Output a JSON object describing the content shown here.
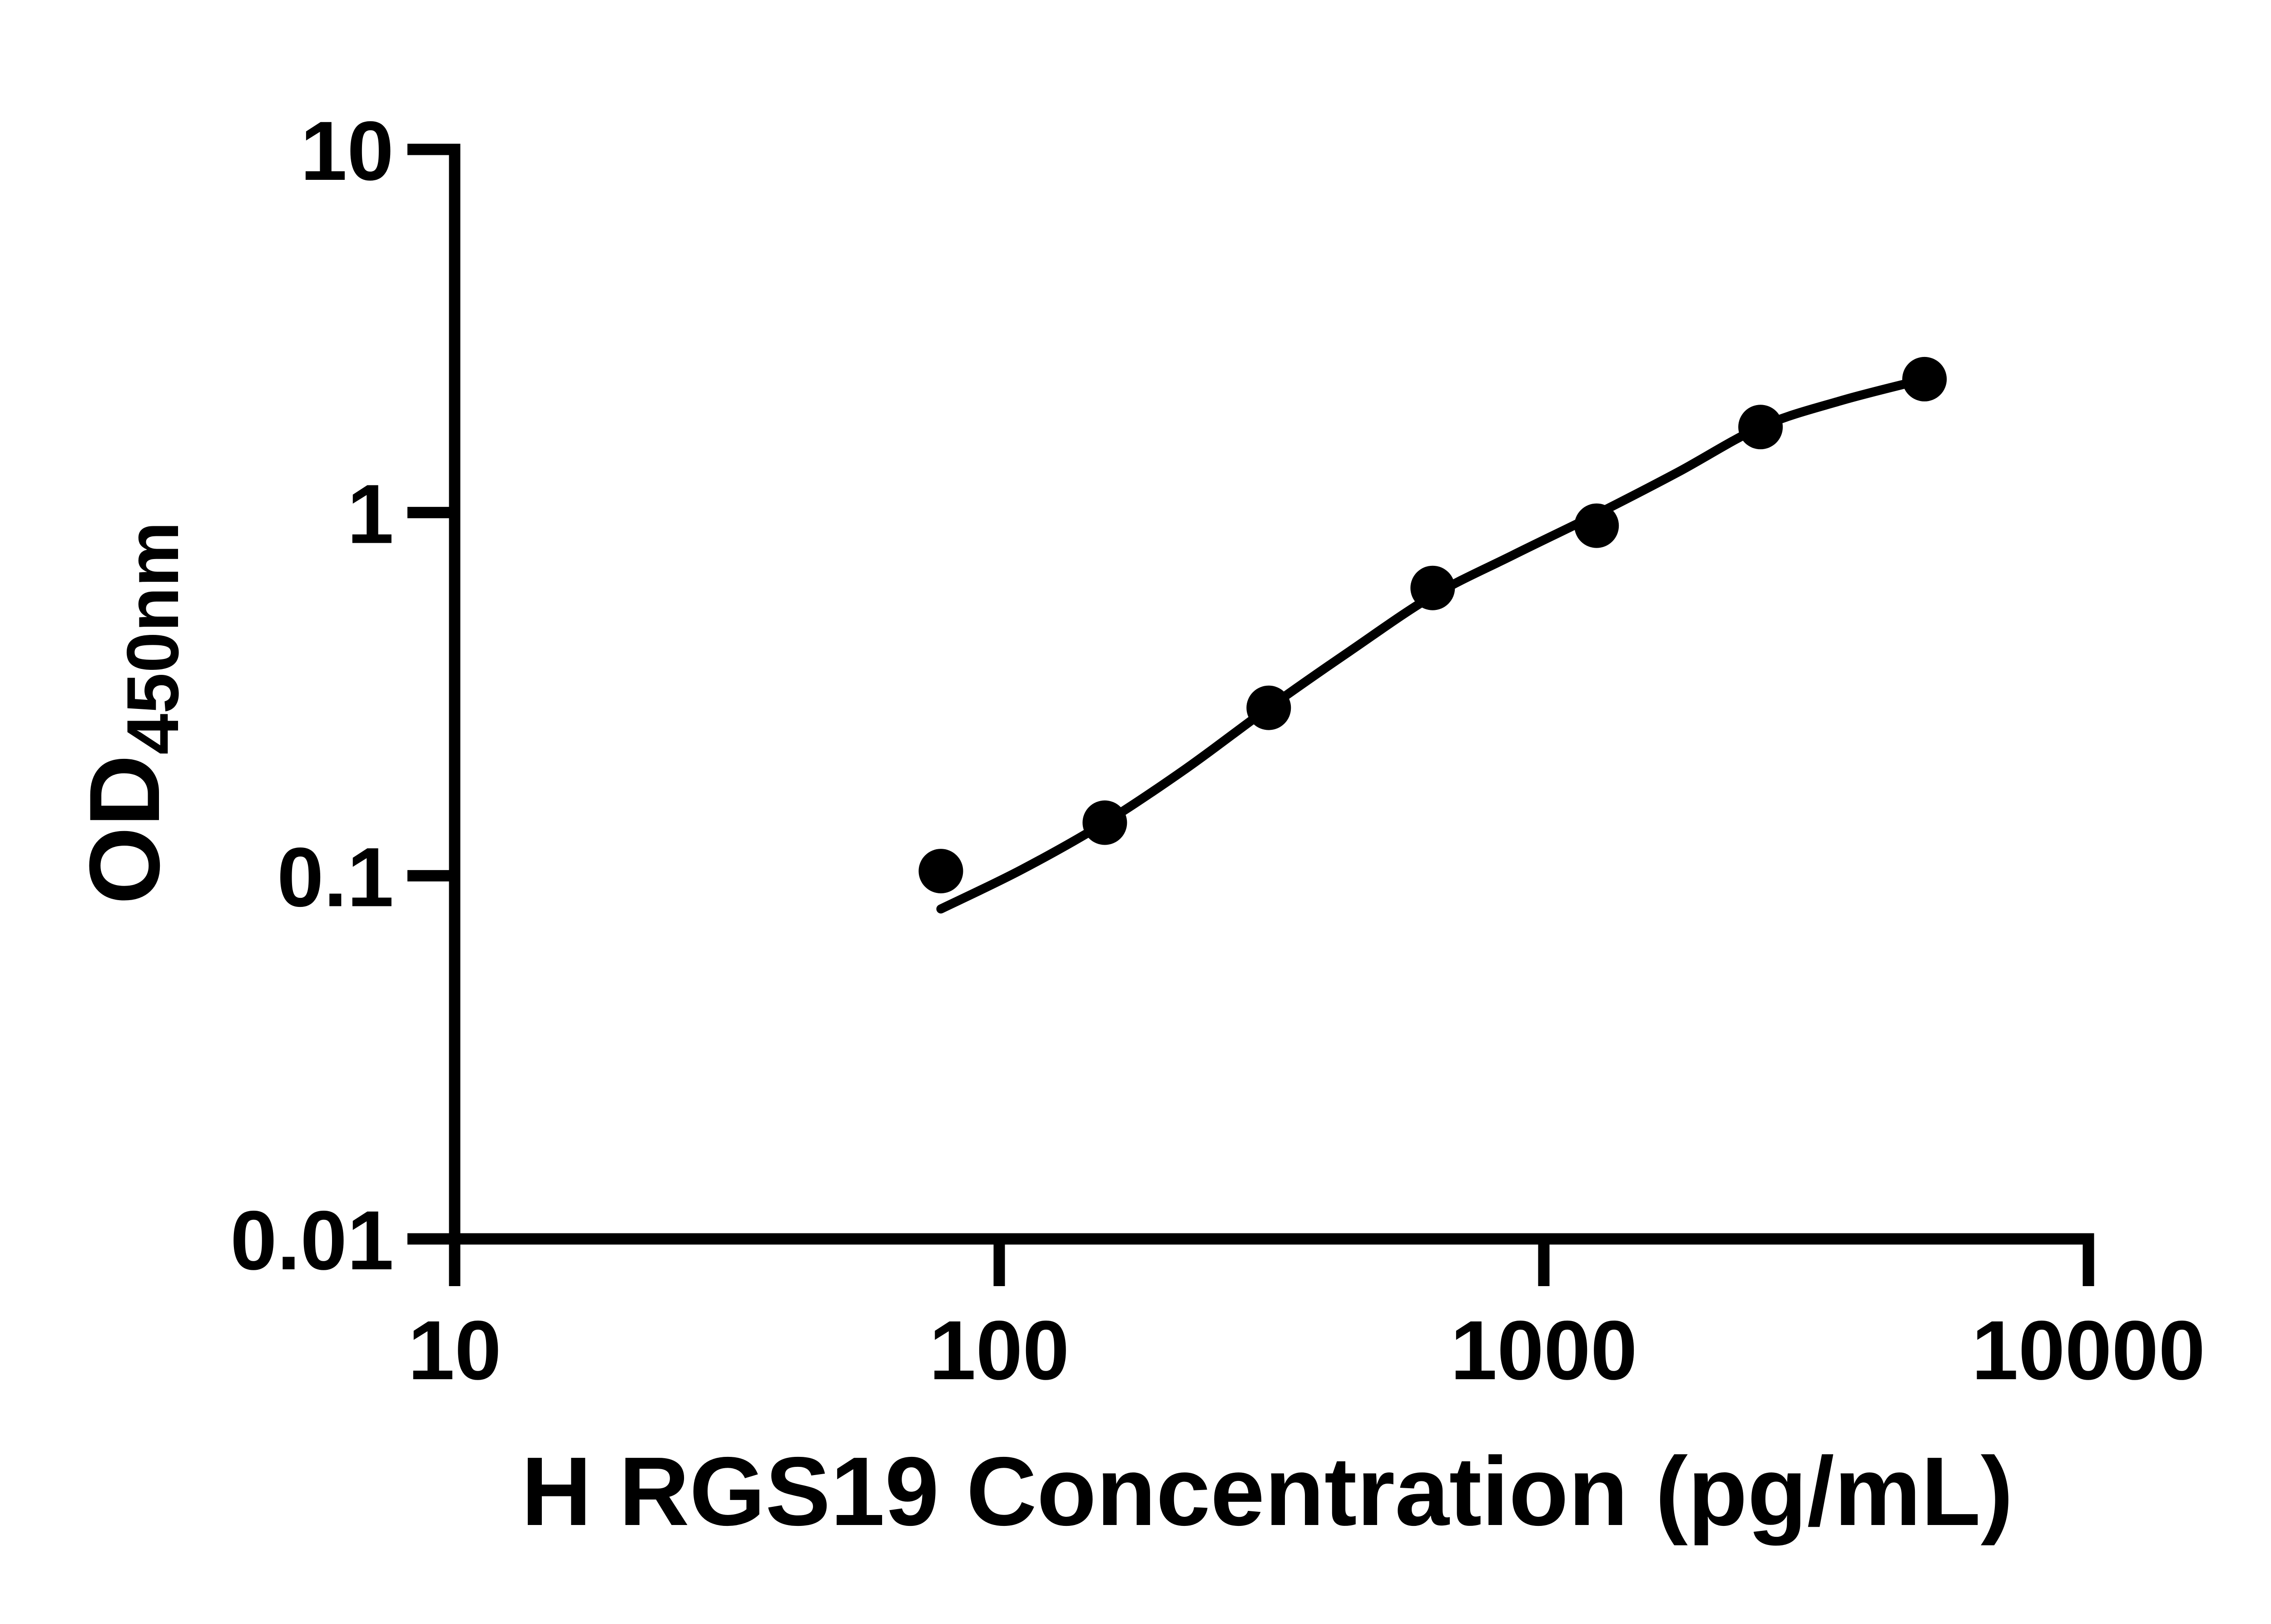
{
  "figure": {
    "background_color": "#ffffff",
    "ink_color": "#000000"
  },
  "chart_data": {
    "type": "scatter",
    "title": "",
    "xlabel": "H RGS19 Concentration (pg/mL)",
    "ylabel_main": "OD",
    "ylabel_subscript": "450nm",
    "x_scale": "log10",
    "y_scale": "log10",
    "xlim": [
      10,
      10000
    ],
    "ylim": [
      0.01,
      10
    ],
    "grid": false,
    "legend": null,
    "x_ticks": [
      {
        "value": 10,
        "label": "10"
      },
      {
        "value": 100,
        "label": "100"
      },
      {
        "value": 1000,
        "label": "1000"
      },
      {
        "value": 10000,
        "label": "10000"
      }
    ],
    "y_ticks": [
      {
        "value": 10,
        "label": "10"
      },
      {
        "value": 1,
        "label": "1"
      },
      {
        "value": 0.1,
        "label": "0.1"
      },
      {
        "value": 0.01,
        "label": "0.01"
      }
    ],
    "series": [
      {
        "name": "standard-curve-points",
        "marker": "filled-circle",
        "color": "#000000",
        "points": [
          {
            "x": 78.125,
            "y": 0.103
          },
          {
            "x": 156.25,
            "y": 0.14
          },
          {
            "x": 312.5,
            "y": 0.29
          },
          {
            "x": 625,
            "y": 0.62
          },
          {
            "x": 1250,
            "y": 0.92
          },
          {
            "x": 2500,
            "y": 1.72
          },
          {
            "x": 5000,
            "y": 2.33
          }
        ]
      }
    ],
    "fit_curve": {
      "name": "4pl-fit-line",
      "color": "#000000",
      "points": [
        [
          78.125,
          0.081
        ],
        [
          110,
          0.104
        ],
        [
          156.25,
          0.14
        ],
        [
          220,
          0.197
        ],
        [
          312.5,
          0.29
        ],
        [
          440,
          0.415
        ],
        [
          625,
          0.59
        ],
        [
          880,
          0.765
        ],
        [
          1250,
          0.99
        ],
        [
          1760,
          1.29
        ],
        [
          2500,
          1.72
        ],
        [
          3500,
          2.03
        ],
        [
          5000,
          2.33
        ]
      ]
    }
  }
}
